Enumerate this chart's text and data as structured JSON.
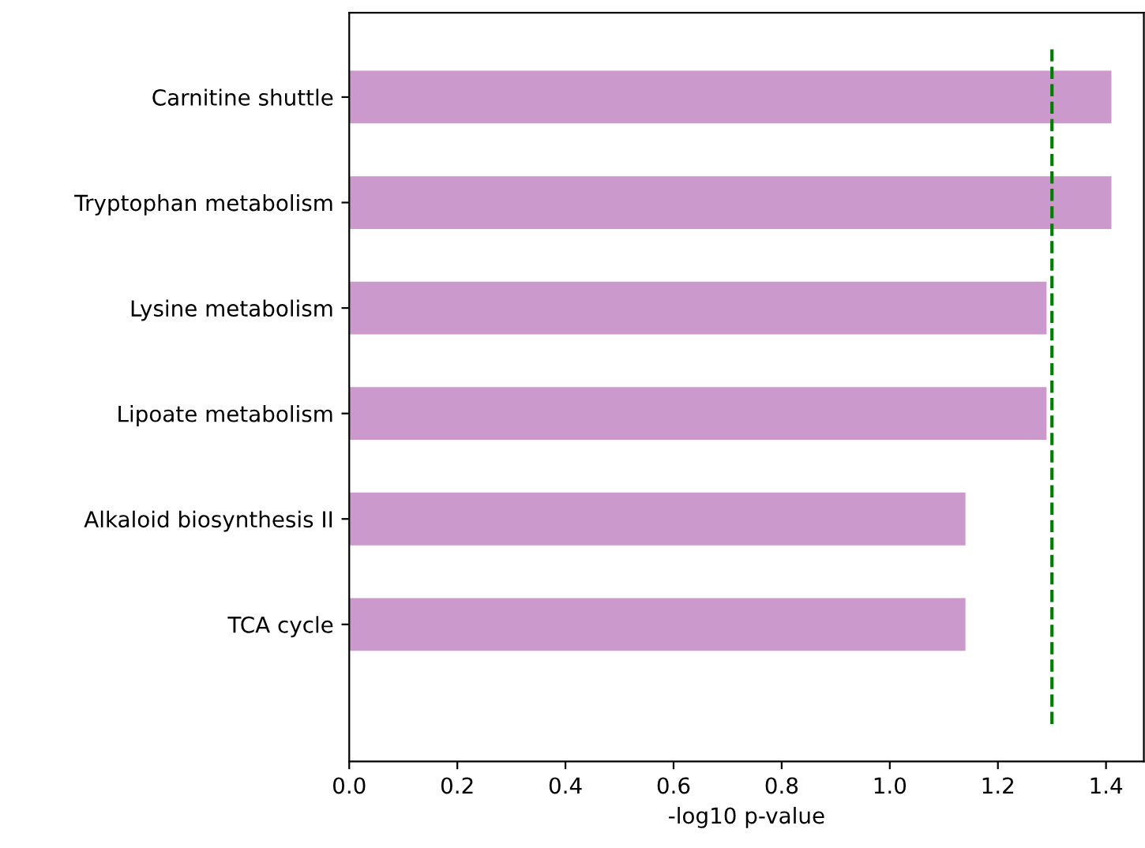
{
  "chart_data": {
    "type": "bar",
    "orientation": "horizontal",
    "xlabel": "-log10 p-value",
    "categories": [
      "Carnitine shuttle",
      "Tryptophan metabolism",
      "Lysine metabolism",
      "Lipoate metabolism",
      "Alkaloid biosynthesis II",
      "TCA cycle"
    ],
    "values": [
      1.41,
      1.41,
      1.29,
      1.29,
      1.14,
      1.14
    ],
    "color": "#cc99cc",
    "xlim": [
      0,
      1.47
    ],
    "xticks": [
      {
        "value": 0,
        "label": "0.0"
      },
      {
        "value": 0.2,
        "label": "0.2"
      },
      {
        "value": 0.4,
        "label": "0.4"
      },
      {
        "value": 0.6,
        "label": "0.6"
      },
      {
        "value": 0.8,
        "label": "0.8"
      },
      {
        "value": 1.0,
        "label": "1.0"
      },
      {
        "value": 1.2,
        "label": "1.2"
      },
      {
        "value": 1.4,
        "label": "1.4"
      }
    ],
    "ref_lines": [
      {
        "axis": "x",
        "value": 1.3,
        "color": "#008000",
        "line_style": "dashed"
      }
    ],
    "grid": false,
    "legend": false
  }
}
